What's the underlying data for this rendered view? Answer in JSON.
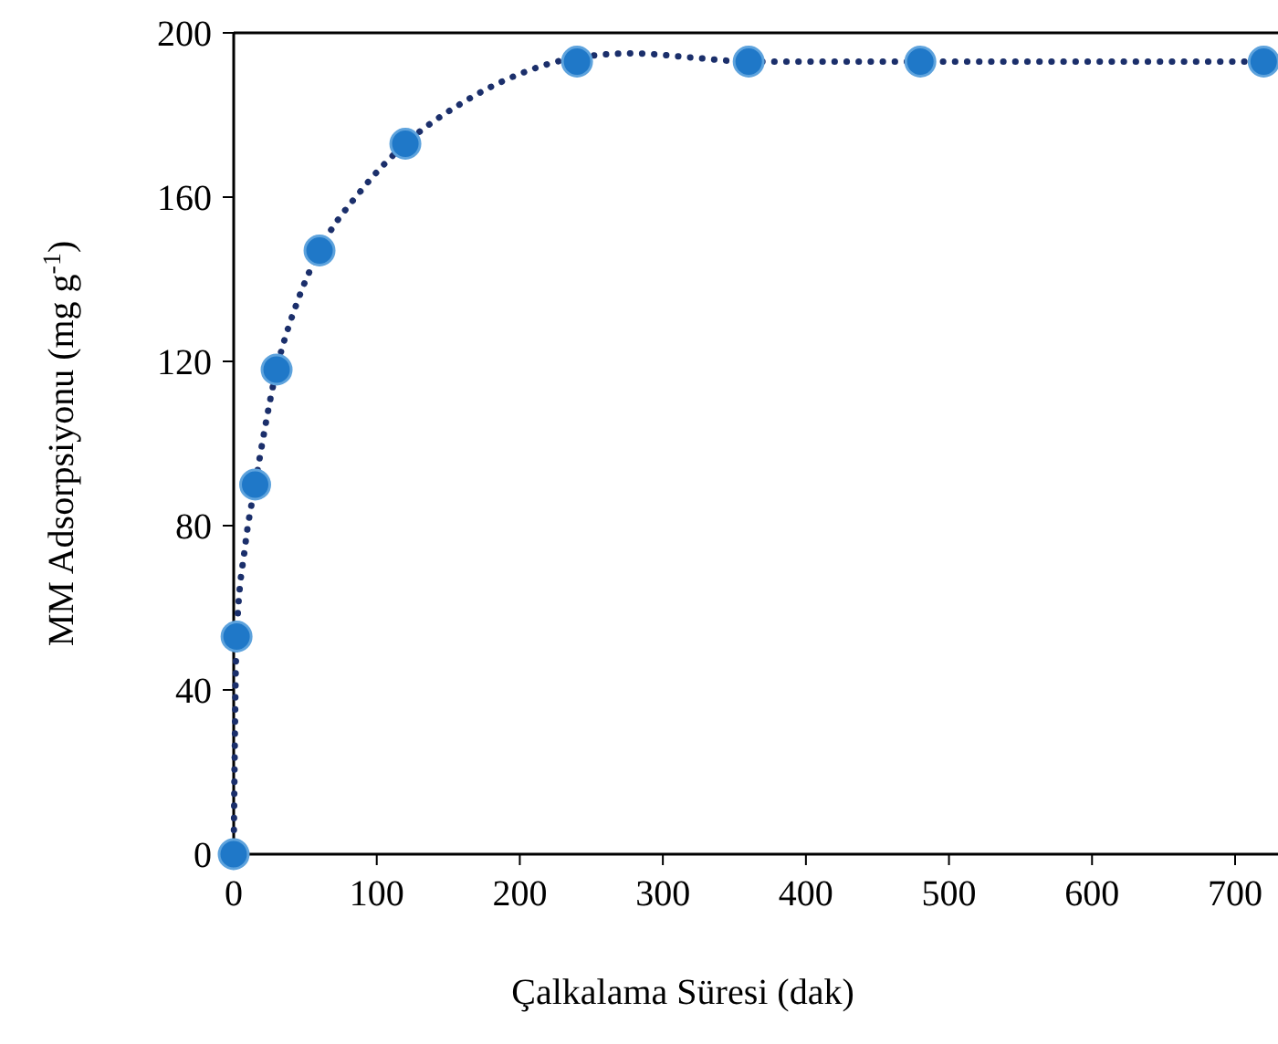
{
  "chart_data": {
    "type": "scatter",
    "xlabel": "Çalkalama Süresi (dak)",
    "ylabel": "MM Adsorpsiyonu (mg g$^{-1}$)",
    "xlim": [
      0,
      730
    ],
    "xticks": [
      0,
      100,
      200,
      300,
      400,
      500,
      600,
      700
    ],
    "ylim": [
      0,
      200
    ],
    "yticks": [
      0,
      40,
      80,
      120,
      160,
      200
    ],
    "grid": false,
    "series": [
      {
        "type": "line",
        "color": "#1b2f6b",
        "line_style": "dotted",
        "marker": "none",
        "x": [
          0,
          2,
          8,
          15,
          30,
          45,
          60,
          90,
          120,
          160,
          200,
          240,
          280,
          320,
          360,
          480,
          720
        ],
        "values": [
          0,
          53,
          75,
          90,
          118,
          135,
          147,
          162,
          173,
          183,
          190,
          194,
          195,
          194,
          193,
          193,
          193
        ]
      },
      {
        "color": "#1f78c8",
        "marker": "circle",
        "x": [
          0,
          2,
          15,
          30,
          60,
          120,
          240,
          360,
          480,
          720
        ],
        "values": [
          0,
          53,
          90,
          118,
          147,
          173,
          193,
          193,
          193,
          193
        ]
      }
    ]
  }
}
